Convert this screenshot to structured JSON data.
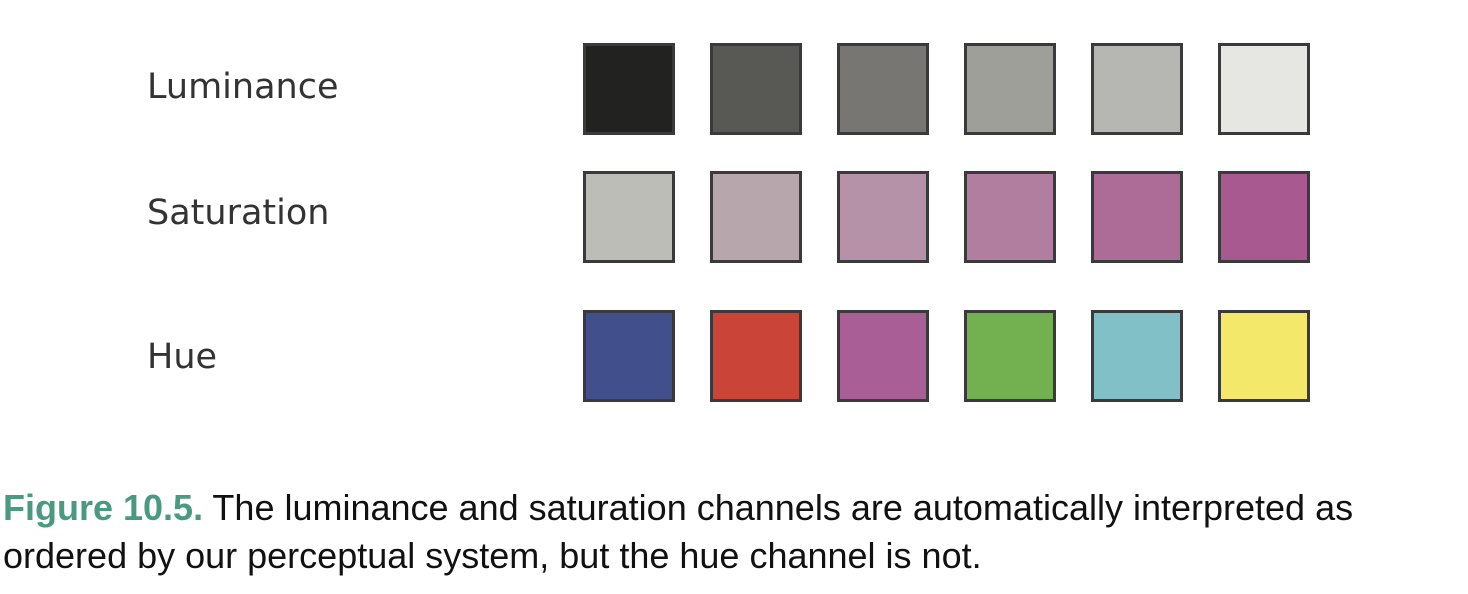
{
  "rows": [
    {
      "label": "Luminance",
      "swatches": [
        "#222220",
        "#585855",
        "#777672",
        "#9f9f9a",
        "#b6b6b2",
        "#e6e6e2"
      ]
    },
    {
      "label": "Saturation",
      "swatches": [
        "#bdbdb8",
        "#b7a7ad",
        "#b592a8",
        "#b17e9f",
        "#ad6c98",
        "#a85a90"
      ]
    },
    {
      "label": "Hue",
      "swatches": [
        "#41508c",
        "#ca4437",
        "#a95e96",
        "#72b050",
        "#82c0c8",
        "#f3e86a"
      ]
    }
  ],
  "caption": {
    "label": "Figure 10.5.",
    "text": " The luminance and saturation channels are automatically interpreted as ordered by our perceptual system, but the hue channel is not."
  }
}
